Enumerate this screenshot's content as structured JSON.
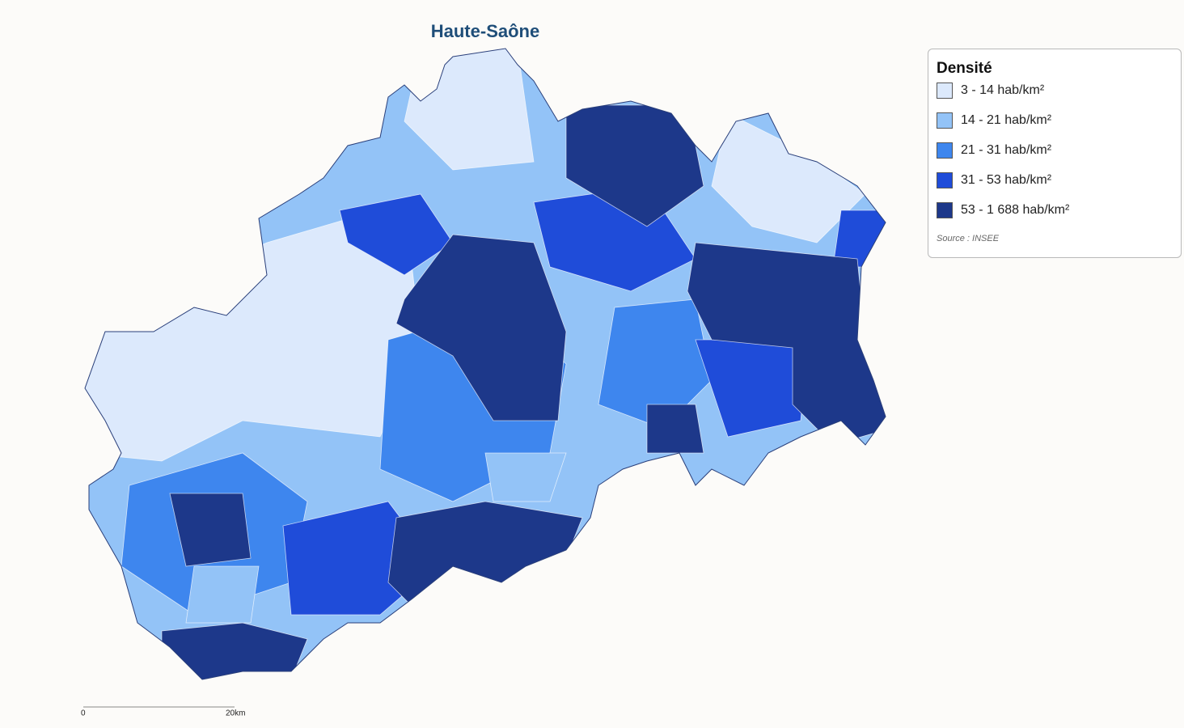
{
  "title": "Haute-Saône",
  "legend": {
    "title": "Densité",
    "items": [
      {
        "label": "3 - 14 hab/km²",
        "color": "#dce9fc"
      },
      {
        "label": "14 - 21 hab/km²",
        "color": "#93c3f7"
      },
      {
        "label": "21 - 31 hab/km²",
        "color": "#3e86ee"
      },
      {
        "label": "31 - 53 hab/km²",
        "color": "#1f4cd9"
      },
      {
        "label": "53 - 1 688 hab/km²",
        "color": "#1d388a"
      }
    ]
  },
  "source": "Source : INSEE",
  "scale": {
    "start": "0",
    "end": "20km"
  }
}
